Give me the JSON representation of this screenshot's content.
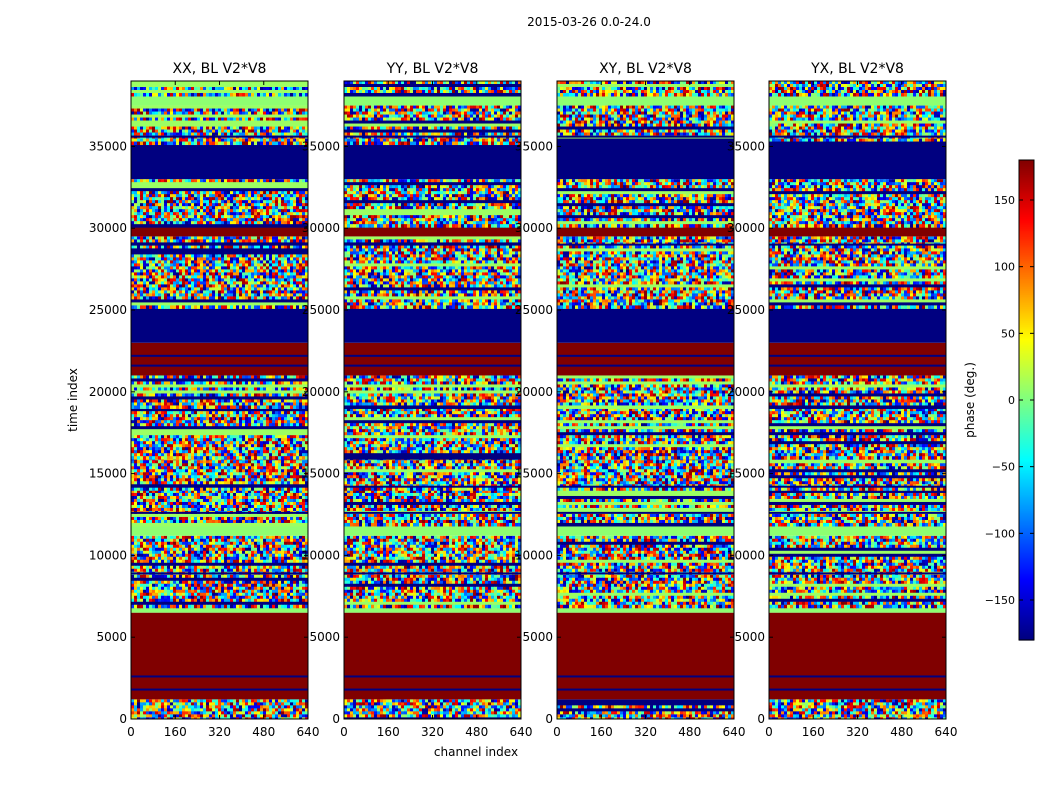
{
  "figure_title": "2015-03-26 0.0-24.0",
  "chart_data": {
    "type": "heatmap",
    "suptitle": "2015-03-26 0.0-24.0",
    "panels": [
      {
        "id": "xx",
        "title": "XX, BL V2*V8"
      },
      {
        "id": "yy",
        "title": "YY, BL V2*V8"
      },
      {
        "id": "xy",
        "title": "XY, BL V2*V8"
      },
      {
        "id": "yx",
        "title": "YX, BL V2*V8"
      }
    ],
    "xlabel": "channel index",
    "ylabel": "time index",
    "xlim": [
      0,
      640
    ],
    "ylim": [
      0,
      39000
    ],
    "xticks": [
      0,
      160,
      320,
      480,
      640
    ],
    "yticks": [
      0,
      5000,
      10000,
      15000,
      20000,
      25000,
      30000,
      35000
    ],
    "colorbar": {
      "label": "phase (deg.)",
      "colormap": "jet",
      "vmin": -180,
      "vmax": 180,
      "ticks": [
        -150,
        -100,
        -50,
        0,
        50,
        100,
        150
      ]
    },
    "bands": [
      {
        "from": 0,
        "to": 1200,
        "kind": "noise"
      },
      {
        "from": 1200,
        "to": 6500,
        "kind": "value",
        "value": 180
      },
      {
        "from": 6500,
        "to": 6900,
        "kind": "value",
        "value": 5
      },
      {
        "from": 6900,
        "to": 11200,
        "kind": "noise"
      },
      {
        "from": 11200,
        "to": 11900,
        "kind": "value",
        "value": 5
      },
      {
        "from": 11900,
        "to": 14000,
        "kind": "noise"
      },
      {
        "from": 14000,
        "to": 16000,
        "kind": "noise"
      },
      {
        "from": 16000,
        "to": 19000,
        "kind": "noise"
      },
      {
        "from": 19000,
        "to": 21000,
        "kind": "noise"
      },
      {
        "from": 21000,
        "to": 23000,
        "kind": "value",
        "value": 180
      },
      {
        "from": 23000,
        "to": 25200,
        "kind": "value",
        "value": -180
      },
      {
        "from": 25200,
        "to": 29500,
        "kind": "noise"
      },
      {
        "from": 29500,
        "to": 30200,
        "kind": "value",
        "value": 180
      },
      {
        "from": 30200,
        "to": 33000,
        "kind": "noise"
      },
      {
        "from": 33000,
        "to": 35200,
        "kind": "value",
        "value": -180
      },
      {
        "from": 35200,
        "to": 37500,
        "kind": "noise"
      },
      {
        "from": 37500,
        "to": 38200,
        "kind": "value",
        "value": 5
      },
      {
        "from": 38200,
        "to": 39000,
        "kind": "noise"
      }
    ],
    "lines": [
      {
        "at": 1800,
        "value": -180
      },
      {
        "at": 2600,
        "value": -180
      },
      {
        "at": 8900,
        "value": -180
      },
      {
        "at": 12600,
        "value": -180
      },
      {
        "at": 14200,
        "value": -180
      },
      {
        "at": 21600,
        "value": -180
      },
      {
        "at": 22200,
        "value": -180
      },
      {
        "at": 29000,
        "value": -180
      },
      {
        "at": 35600,
        "value": -180
      }
    ]
  }
}
